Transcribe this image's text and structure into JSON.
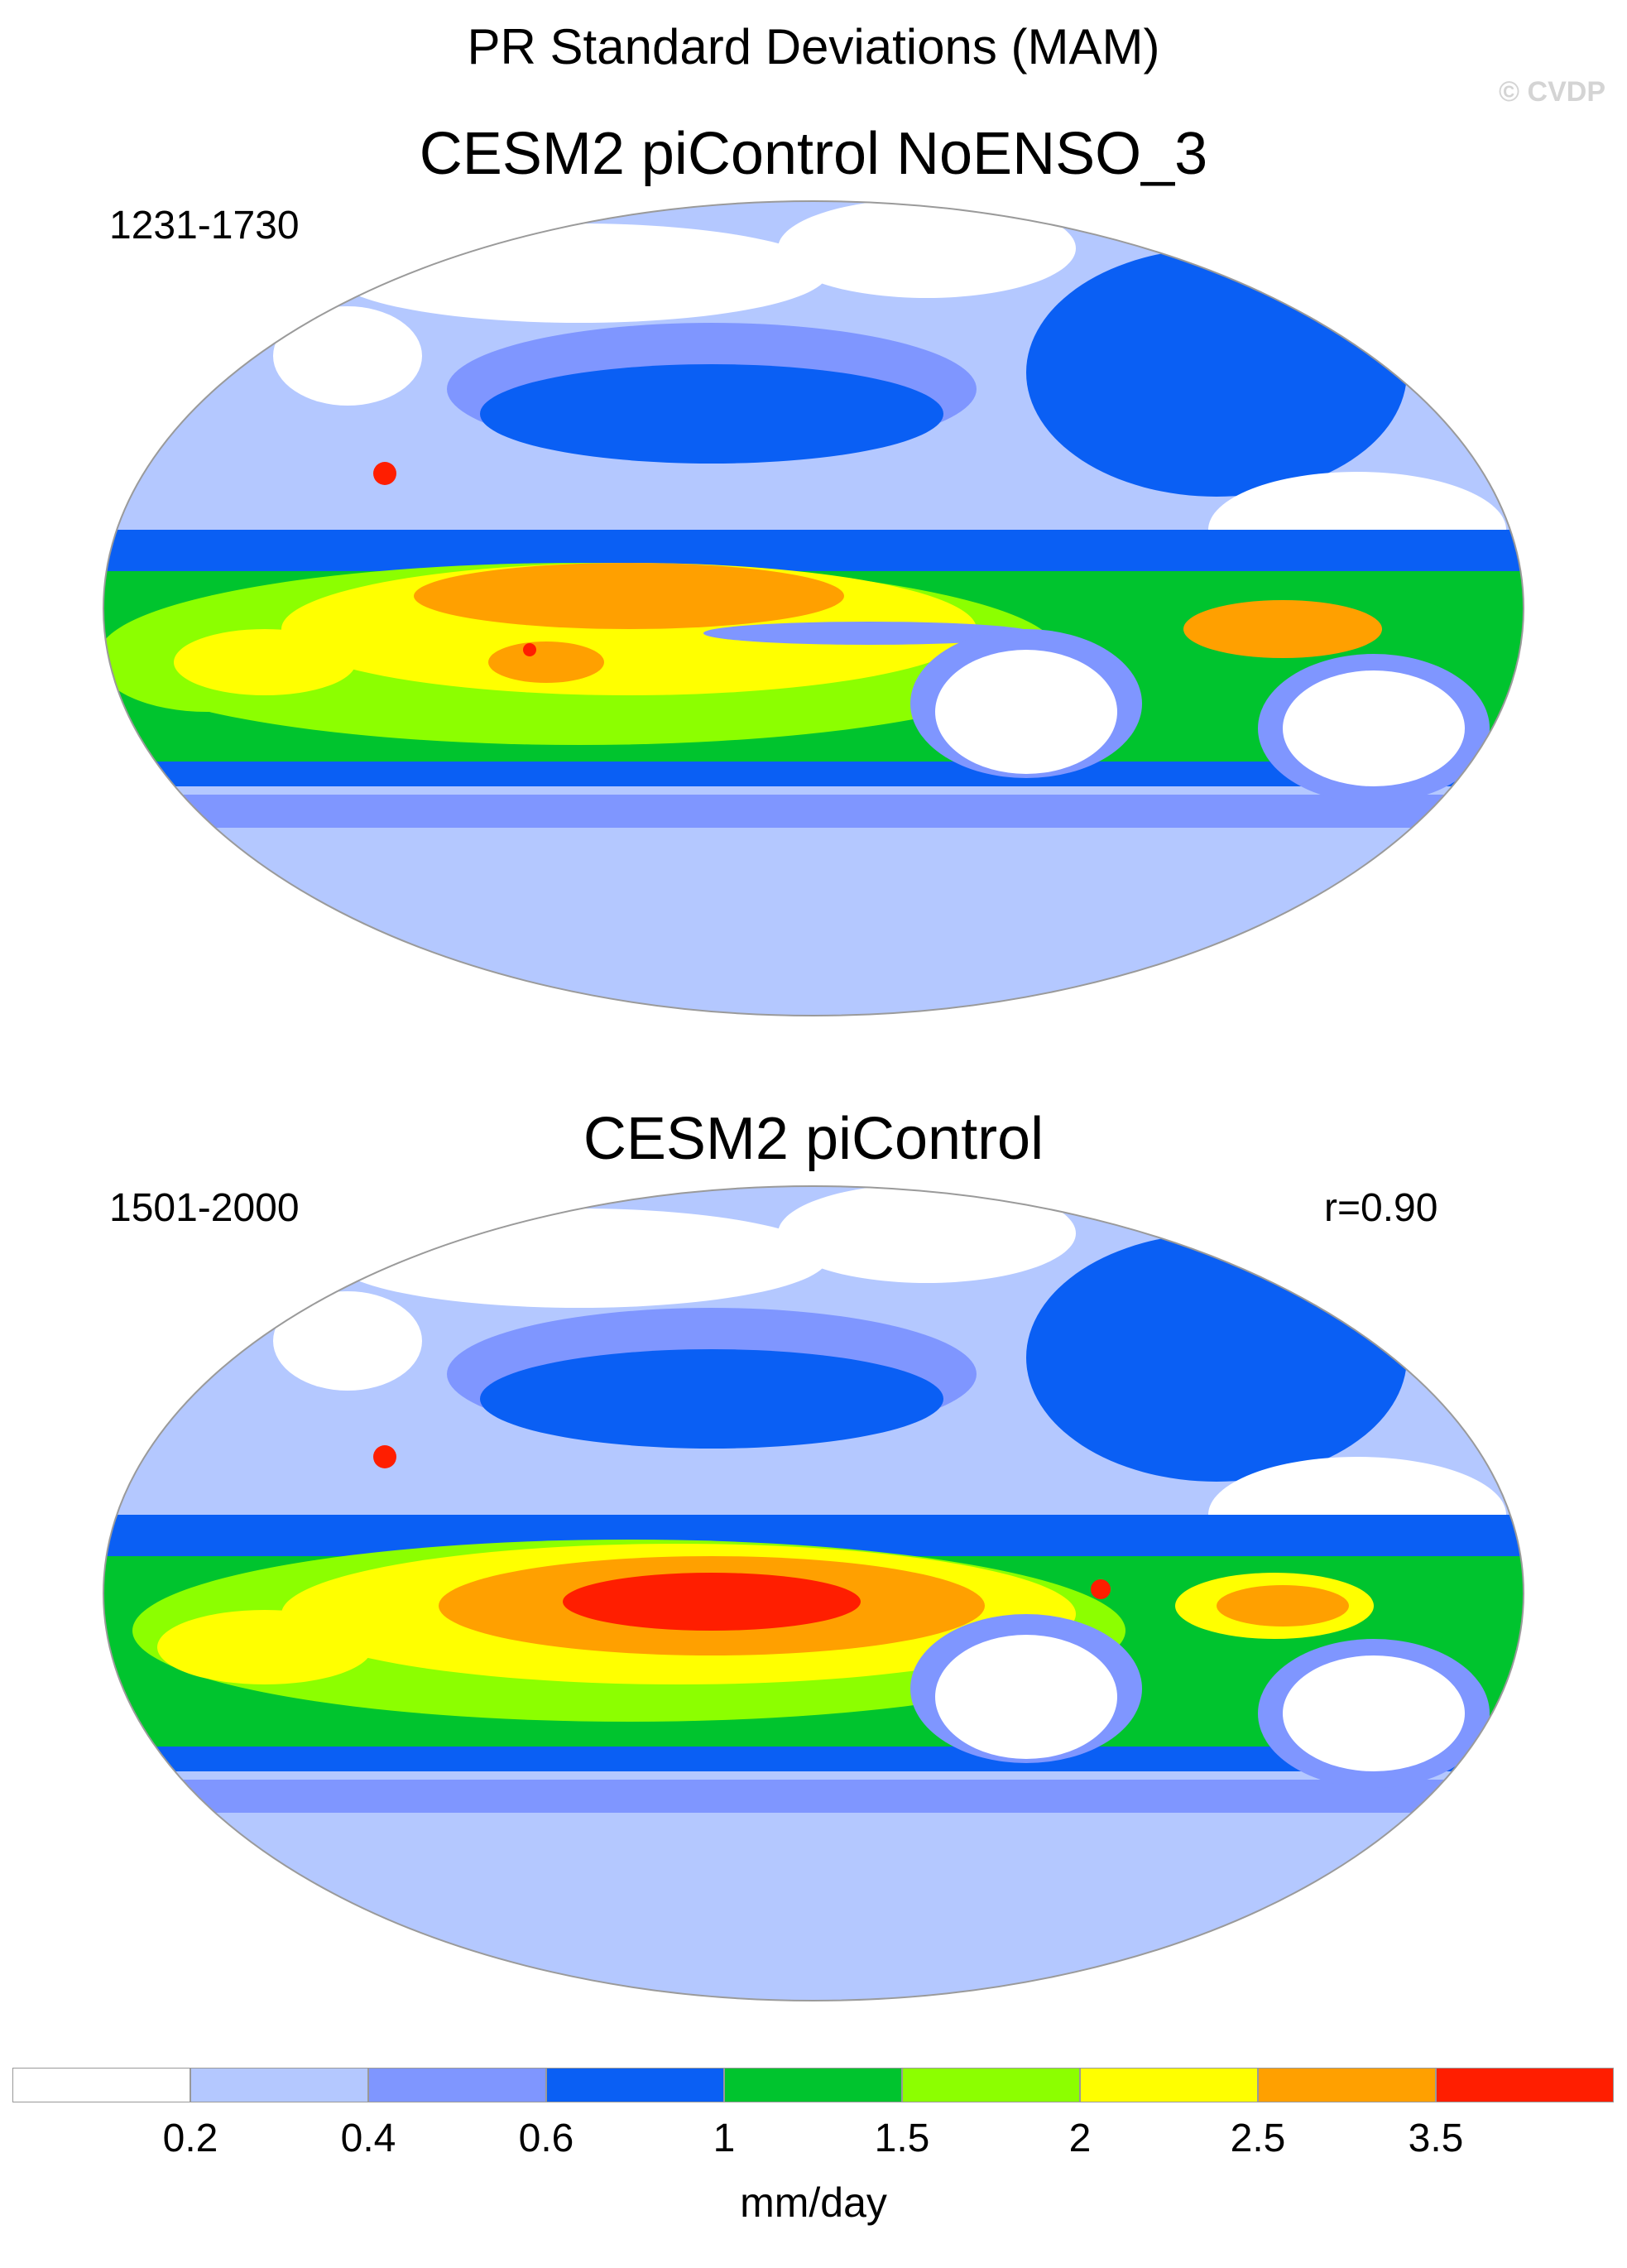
{
  "figure": {
    "title": "PR Standard Deviations (MAM)",
    "copyright": "© CVDP"
  },
  "panels": [
    {
      "title": "CESM2 piControl NoENSO_3",
      "left_label": "1231-1730",
      "right_label": ""
    },
    {
      "title": "CESM2 piControl",
      "left_label": "1501-2000",
      "right_label": "r=0.90"
    }
  ],
  "colorbar": {
    "units": "mm/day",
    "tick_labels": [
      "0.2",
      "0.4",
      "0.6",
      "1",
      "1.5",
      "2",
      "2.5",
      "3.5"
    ],
    "colors": [
      "#ffffff",
      "#b4c8ff",
      "#7f96ff",
      "#0a5ff4",
      "#00c42e",
      "#8cff00",
      "#ffff00",
      "#ffa000",
      "#ff1e00"
    ]
  }
}
